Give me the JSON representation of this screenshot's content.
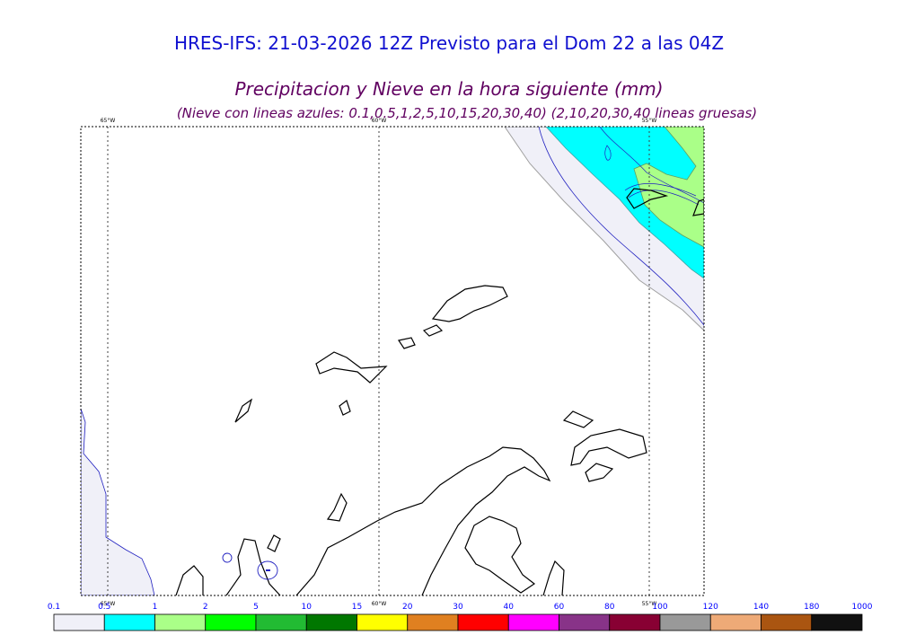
{
  "header": {
    "title": "HRES-IFS: 21-03-2026 12Z Previsto para el Dom 22 a las 04Z",
    "subtitle": "Precipitacion y Nieve en la hora siguiente (mm)",
    "note": "(Nieve con lineas azules: 0.1,0.5,1,2,5,10,15,20,30,40)  (2,10,20,30,40 lineas gruesas)"
  },
  "map": {
    "meridian_labels": [
      "65°W",
      "60°W",
      "55°W"
    ],
    "colors": {
      "frame": "#000000",
      "coast": "#000000",
      "snow_line": "#2020c0",
      "grid": "#404040"
    }
  },
  "legend": {
    "labels": [
      "0.1",
      "0.5",
      "1",
      "2",
      "5",
      "10",
      "15",
      "20",
      "30",
      "40",
      "60",
      "80",
      "100",
      "120",
      "140",
      "180",
      "1000"
    ],
    "colors": [
      "#f0f0f8",
      "#00ffff",
      "#aaff88",
      "#00ff00",
      "#22bb33",
      "#007700",
      "#ffff00",
      "#e08020",
      "#ff0000",
      "#ff00ff",
      "#883388",
      "#880033",
      "#999999",
      "#eeaa77",
      "#aa5511",
      "#111111"
    ],
    "label_color": "#0000ff"
  }
}
